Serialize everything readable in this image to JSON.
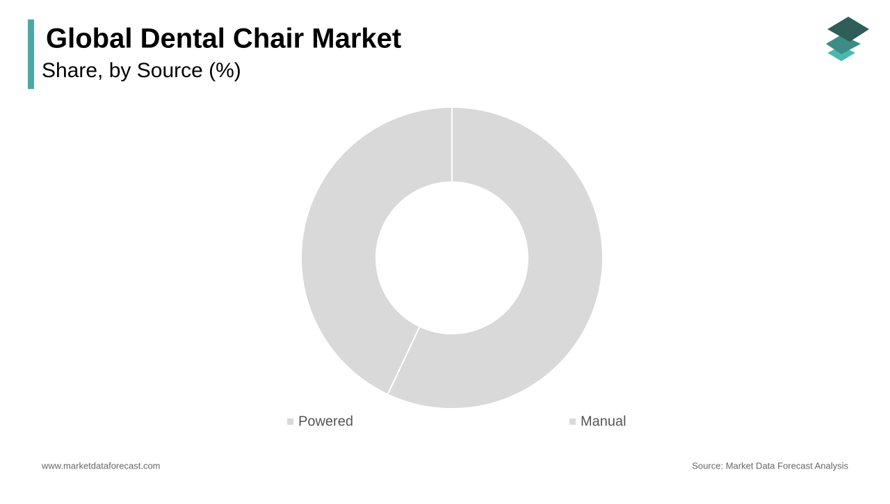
{
  "chart_data": {
    "type": "pie",
    "title": "Global Dental Chair Market",
    "subtitle": "Share, by Source (%)",
    "categories": [
      "Powered",
      "Manual"
    ],
    "values": [
      57,
      43
    ],
    "colors": [
      "#d9d9d9",
      "#d9d9d9"
    ],
    "donut": true,
    "website": "www.marketdataforecast.com",
    "source": "Source: Market Data Forecast Analysis"
  }
}
